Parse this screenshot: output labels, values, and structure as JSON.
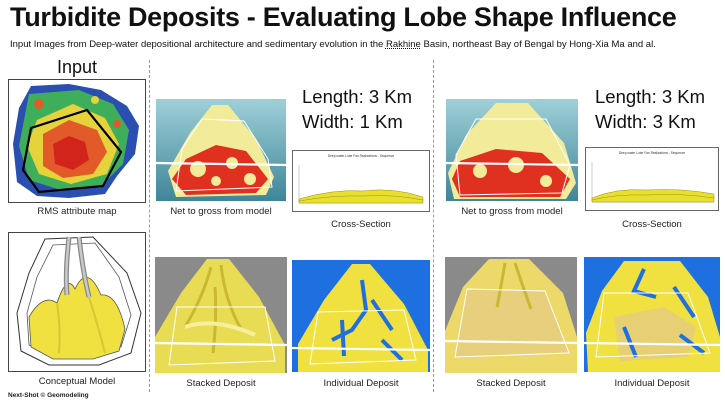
{
  "title": "Turbidite Deposits - Evaluating Lobe Shape Influence",
  "subtitle": {
    "prefix": "Input Images from Deep-water depositional architecture and sedimentary evolution in the ",
    "underlined": "Rakhine",
    "suffix": " Basin, northeast Bay of Bengal by Hong-Xia Ma and al."
  },
  "input_section": {
    "heading": "Input",
    "rms_caption": "RMS attribute map",
    "conceptual_caption": "Conceptual Model"
  },
  "scenarios": [
    {
      "length": "Length: 3 Km",
      "width": "Width: 1 Km",
      "net_to_gross_caption": "Net to gross from model",
      "cross_section_caption": "Cross-Section",
      "cross_section_chart_title": "Deep-water Lobe Fan Realizations - Sequence",
      "stacked_caption": "Stacked Deposit",
      "individual_caption": "Individual Deposit"
    },
    {
      "length": "Length: 3 Km",
      "width": "Width: 3 Km",
      "net_to_gross_caption": "Net to gross from model",
      "cross_section_caption": "Cross-Section",
      "cross_section_chart_title": "Deep-water Lobe Fan Realizations - Sequence",
      "stacked_caption": "Stacked Deposit",
      "individual_caption": "Individual Deposit"
    }
  ],
  "footer": "Next-Shot © Geomodeling",
  "colors": {
    "deposit_yellow": "#f0e040",
    "blue_background": "#1e6fe0",
    "gray_background": "#8a8a8a",
    "teal_background": "#4d8fa0",
    "hot_red": "#e03020"
  }
}
